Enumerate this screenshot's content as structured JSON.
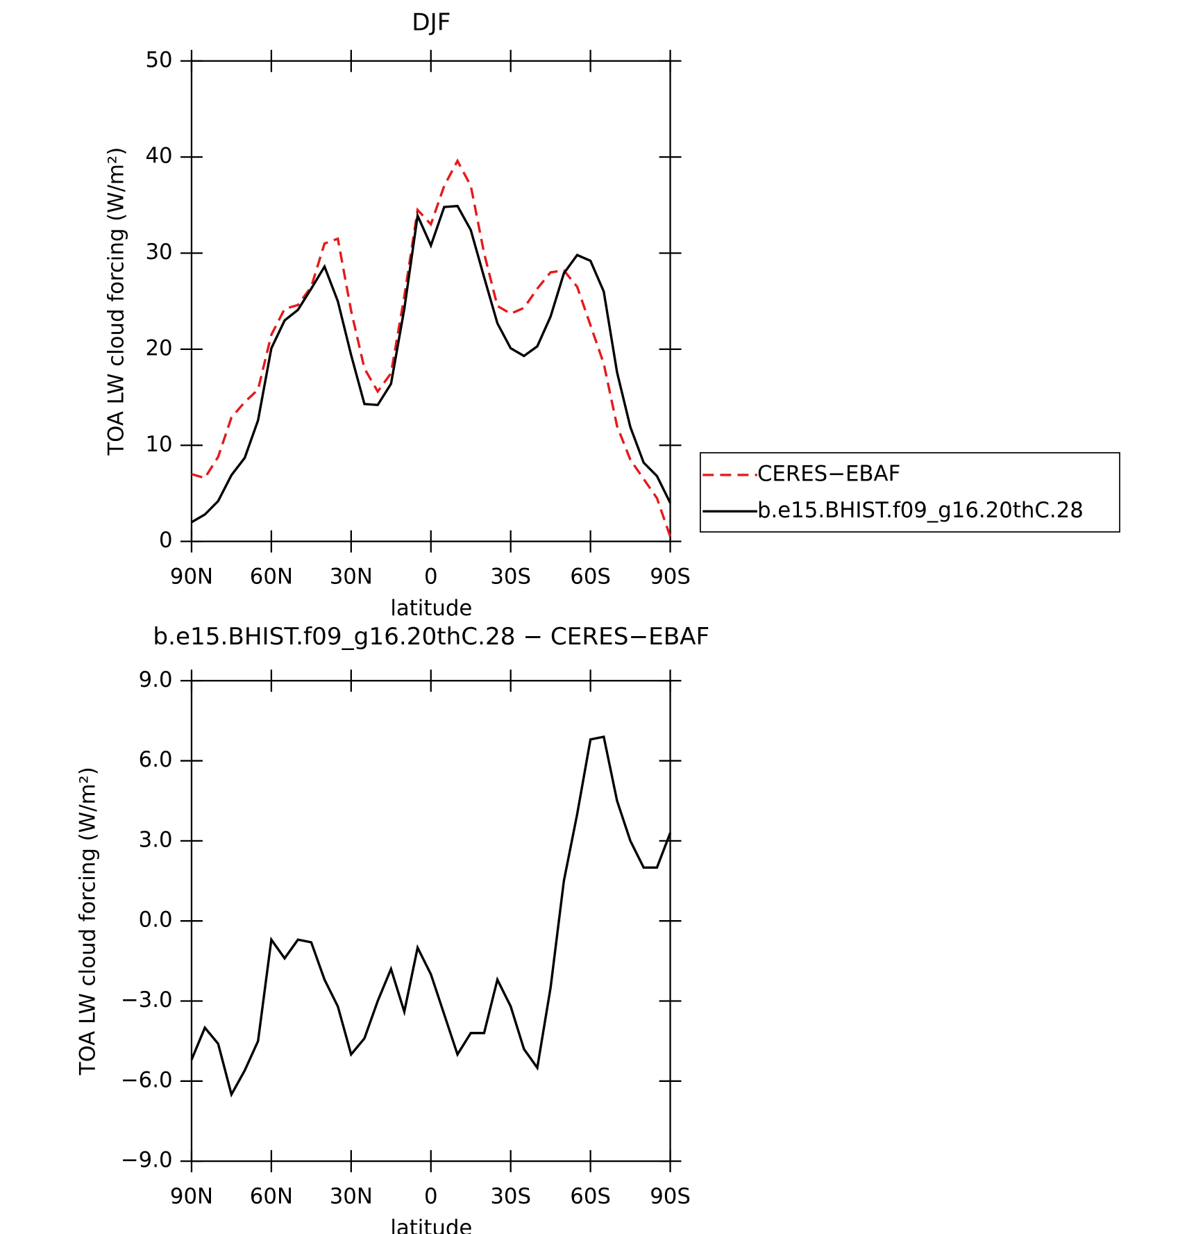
{
  "chart_data": [
    {
      "type": "line",
      "title": "DJF",
      "xlabel": "latitude",
      "ylabel": "TOA LW cloud forcing (W/m²)",
      "x": [
        90,
        85,
        80,
        75,
        70,
        65,
        60,
        55,
        50,
        45,
        40,
        35,
        30,
        25,
        20,
        15,
        10,
        5,
        0,
        -5,
        -10,
        -15,
        -20,
        -25,
        -30,
        -35,
        -40,
        -45,
        -50,
        -55,
        -60,
        -65,
        -70,
        -75,
        -80,
        -85,
        -90
      ],
      "series": [
        {
          "name": "CERES−EBAF",
          "color": "#e41a1c",
          "dash": true,
          "values": [
            7.0,
            6.6,
            8.8,
            12.9,
            14.5,
            15.8,
            21.5,
            24.2,
            24.6,
            26.5,
            31.0,
            31.5,
            24.0,
            18.0,
            15.6,
            17.5,
            25.5,
            34.5,
            33.0,
            37.0,
            39.6,
            37.0,
            30.0,
            24.5,
            23.7,
            24.3,
            26.3,
            28.0,
            28.2,
            26.5,
            22.5,
            18.5,
            12.0,
            8.5,
            6.5,
            4.5,
            0.5
          ]
        },
        {
          "name": "b.e15.BHIST.f09_g16.20thC.28",
          "color": "#000000",
          "dash": false,
          "values": [
            2.0,
            2.8,
            4.2,
            6.9,
            8.7,
            12.6,
            20.1,
            23.0,
            24.1,
            26.3,
            28.6,
            25.0,
            19.4,
            14.3,
            14.2,
            16.4,
            24.2,
            33.9,
            30.8,
            34.8,
            34.9,
            32.4,
            27.5,
            22.7,
            20.1,
            19.3,
            20.3,
            23.4,
            27.9,
            29.8,
            29.2,
            26.0,
            17.6,
            11.9,
            8.2,
            6.8,
            4.0
          ]
        }
      ],
      "xlim": [
        90,
        -90
      ],
      "xticks": [
        {
          "value": 90,
          "label": "90N"
        },
        {
          "value": 60,
          "label": "60N"
        },
        {
          "value": 30,
          "label": "30N"
        },
        0,
        {
          "value": -30,
          "label": "30S"
        },
        {
          "value": -60,
          "label": "60S"
        },
        {
          "value": -90,
          "label": "90S"
        }
      ],
      "ylim": [
        0,
        50
      ],
      "yticks": [
        0,
        10,
        20,
        30,
        40,
        50
      ],
      "legend": "right"
    },
    {
      "type": "line",
      "title": "b.e15.BHIST.f09_g16.20thC.28 − CERES−EBAF",
      "xlabel": "latitude",
      "ylabel": "TOA LW cloud forcing (W/m²)",
      "x": [
        90,
        85,
        80,
        75,
        70,
        65,
        60,
        55,
        50,
        45,
        40,
        35,
        30,
        25,
        20,
        15,
        10,
        5,
        0,
        -5,
        -10,
        -15,
        -20,
        -25,
        -30,
        -35,
        -40,
        -45,
        -50,
        -55,
        -60,
        -65,
        -70,
        -75,
        -80,
        -85,
        -90
      ],
      "color": "#000000",
      "values": [
        -5.2,
        -4.0,
        -4.6,
        -6.5,
        -5.6,
        -4.5,
        -0.7,
        -1.4,
        -0.7,
        -0.8,
        -2.2,
        -3.2,
        -5.0,
        -4.4,
        -3.0,
        -1.8,
        -3.4,
        -1.0,
        -2.0,
        -3.5,
        -5.0,
        -4.2,
        -4.2,
        -2.2,
        -3.2,
        -4.8,
        -5.5,
        -2.5,
        1.5,
        4.0,
        6.8,
        6.9,
        4.5,
        3.0,
        2.0,
        2.0,
        3.3
      ],
      "xlim": [
        90,
        -90
      ],
      "xticks": [
        {
          "value": 90,
          "label": "90N"
        },
        {
          "value": 60,
          "label": "60N"
        },
        {
          "value": 30,
          "label": "30N"
        },
        0,
        {
          "value": -30,
          "label": "30S"
        },
        {
          "value": -60,
          "label": "60S"
        },
        {
          "value": -90,
          "label": "90S"
        }
      ],
      "ylim": [
        -9,
        9
      ],
      "yticks": [
        {
          "value": -9,
          "label": "−9.0"
        },
        {
          "value": -6,
          "label": "−6.0"
        },
        {
          "value": -3,
          "label": "−3.0"
        },
        {
          "value": 0,
          "label": "0.0"
        },
        {
          "value": 3,
          "label": "3.0"
        },
        {
          "value": 6,
          "label": "6.0"
        },
        {
          "value": 9,
          "label": "9.0"
        }
      ]
    }
  ]
}
